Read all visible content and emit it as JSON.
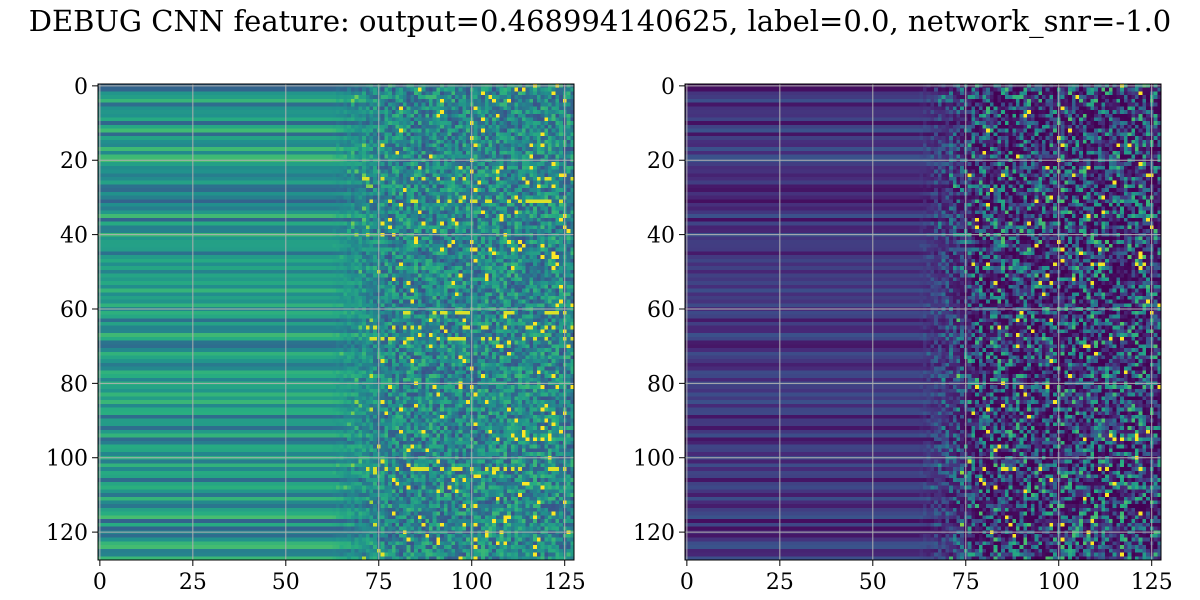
{
  "figure": {
    "title": "DEBUG CNN feature: output=0.468994140625, label=0.0, network_snr=-1.0"
  },
  "chart_data": [
    {
      "type": "heatmap",
      "name": "left-heatmap",
      "colormap": "viridis",
      "rows": 128,
      "cols": 128,
      "xlim": [
        0,
        127
      ],
      "ylim": [
        127,
        0
      ],
      "x_ticks": [
        0,
        25,
        50,
        75,
        100,
        125
      ],
      "y_ticks": [
        0,
        20,
        40,
        60,
        80,
        100,
        120
      ],
      "grid": true,
      "description_of_values": {
        "left_region_cols_0_70": "horizontal row-constant bands, mostly mid-level (teal/blue) with bright green bands near rows 55, 61, 67, 87, 100, 118",
        "right_region_cols_70_127": "noisy speckle, mid-to-bright with some very bright (yellow) pixels near rows 25, 31, 61-68, 103",
        "mean_level": 0.45
      }
    },
    {
      "type": "heatmap",
      "name": "right-heatmap",
      "colormap": "viridis",
      "rows": 128,
      "cols": 128,
      "xlim": [
        0,
        127
      ],
      "ylim": [
        127,
        0
      ],
      "x_ticks": [
        0,
        25,
        50,
        75,
        100,
        125
      ],
      "y_ticks": [
        0,
        20,
        40,
        60,
        80,
        100,
        120
      ],
      "grid": true,
      "description_of_values": {
        "left_region_cols_0_70": "dark purple horizontal bands with slightly lighter blue-purple rows",
        "right_region_cols_70_127": "dark purple background with sparse teal/green speckle and a few yellow pixels near rows 24, 48, 53, 103",
        "mean_level": 0.12
      }
    }
  ]
}
